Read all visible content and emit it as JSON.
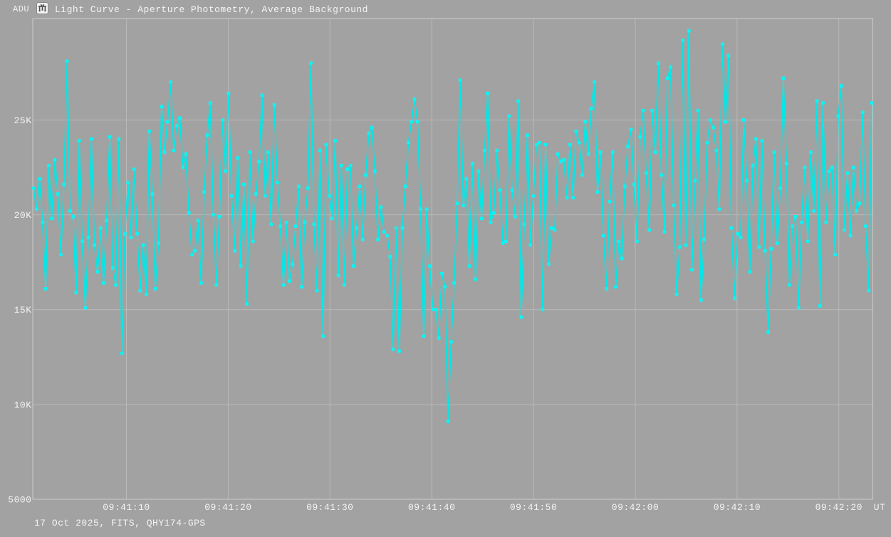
{
  "colors": {
    "background": "#a2a2a2",
    "grid": "#b9b9b9",
    "border": "#cccccc",
    "curve": "#00e9e9",
    "marker": "#0cf4f4",
    "text": "#f4f4f4",
    "icon_bg": "#f2f2f2",
    "icon_glyph": "#4f4f4f"
  },
  "header": {
    "axis_unit_label": "ADU",
    "icon": "light-curve-icon",
    "title": "Light Curve - Aperture Photometry, Average Background"
  },
  "footer": {
    "info": "17 Oct 2025, FITS, QHY174-GPS"
  },
  "chart_data": {
    "type": "line",
    "title": "Light Curve - Aperture Photometry, Average Background",
    "ylabel": "ADU",
    "xlabel": "UT",
    "legend": null,
    "grid": true,
    "marker": "square",
    "x_tick_labels": [
      "09:41:10",
      "09:41:20",
      "09:41:30",
      "09:41:40",
      "09:41:50",
      "09:42:00",
      "09:42:10",
      "09:42:20"
    ],
    "x_axis_suffix": "UT",
    "y_tick_labels": [
      "25K",
      "20K",
      "15K",
      "10K",
      "5000"
    ],
    "y_tick_values": [
      25000,
      20000,
      15000,
      10000,
      5000
    ],
    "ylim": [
      5000,
      30350
    ],
    "x_seconds_per_tick": 10,
    "approx_sample_interval_s": 0.3,
    "values": [
      21400,
      20300,
      21900,
      19600,
      16100,
      22600,
      19800,
      22900,
      21100,
      17900,
      21600,
      28100,
      20200,
      19900,
      15900,
      23900,
      18600,
      15100,
      18800,
      24000,
      18400,
      17000,
      19300,
      16400,
      19700,
      24100,
      17200,
      16300,
      24000,
      12700,
      19000,
      21700,
      18800,
      22400,
      19000,
      16000,
      18400,
      15800,
      24400,
      21100,
      16100,
      18500,
      25700,
      23300,
      24900,
      27000,
      23400,
      24700,
      25100,
      22500,
      23200,
      20100,
      17900,
      18100,
      19700,
      16400,
      21200,
      24200,
      25900,
      20000,
      16300,
      19900,
      25000,
      22300,
      26400,
      21000,
      18100,
      23000,
      17300,
      21600,
      15300,
      23300,
      18600,
      21100,
      22800,
      26300,
      21000,
      23300,
      19500,
      25800,
      21700,
      19400,
      16300,
      19600,
      16500,
      17400,
      19400,
      21500,
      16200,
      19600,
      21400,
      28000,
      19500,
      16000,
      23400,
      13600,
      23700,
      21000,
      19800,
      23900,
      16800,
      22600,
      16300,
      22400,
      22600,
      17300,
      19300,
      21500,
      18700,
      22100,
      24300,
      24600,
      22300,
      18700,
      20400,
      19100,
      18900,
      17800,
      12900,
      19300,
      12800,
      19300,
      21500,
      23800,
      24900,
      26100,
      24900,
      20300,
      13600,
      20300,
      17300,
      15000,
      15000,
      13500,
      16900,
      16200,
      9100,
      13300,
      16400,
      20600,
      27100,
      20500,
      21900,
      17300,
      22700,
      16600,
      22300,
      19800,
      23400,
      26400,
      19600,
      20100,
      23400,
      21300,
      18500,
      18600,
      25200,
      21300,
      19900,
      26000,
      14600,
      19500,
      24200,
      18400,
      21000,
      23700,
      23800,
      15000,
      23700,
      17400,
      19300,
      19200,
      23200,
      22800,
      22900,
      20900,
      23700,
      20900,
      24400,
      23800,
      22100,
      24900,
      23200,
      25600,
      27000,
      21200,
      23300,
      18900,
      16100,
      20700,
      23300,
      16200,
      18600,
      17700,
      21500,
      23600,
      24500,
      21600,
      18600,
      24100,
      25500,
      22200,
      19200,
      25500,
      23300,
      28000,
      22100,
      19100,
      27200,
      27800,
      20500,
      15800,
      18300,
      29200,
      18400,
      29700,
      17100,
      21800,
      25500,
      15500,
      18700,
      23800,
      25000,
      24600,
      23400,
      20300,
      29000,
      24900,
      28400,
      19300,
      15600,
      19000,
      18800,
      25000,
      21800,
      17000,
      22600,
      24000,
      18300,
      23900,
      18100,
      13800,
      18200,
      23300,
      18500,
      21400,
      27200,
      22700,
      16300,
      19400,
      19900,
      15100,
      19600,
      22500,
      18600,
      23300,
      20200,
      26000,
      15200,
      25900,
      19600,
      22300,
      22500,
      17900,
      25200,
      26800,
      19200,
      22200,
      18900,
      22500,
      20200,
      20600,
      25400,
      19400,
      16000,
      25900
    ]
  }
}
